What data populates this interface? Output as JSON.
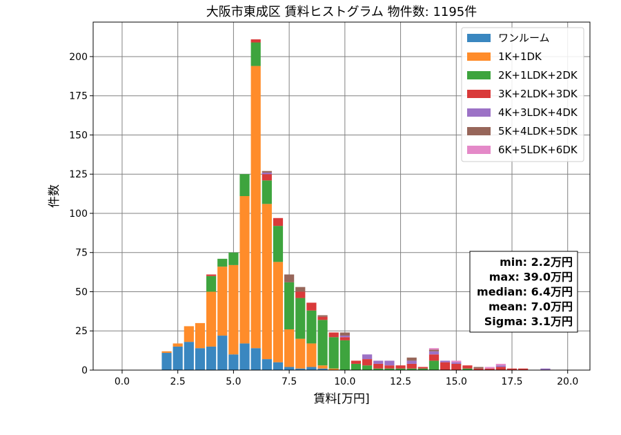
{
  "chart_data": {
    "type": "bar",
    "title": "大阪市東成区 賃料ヒストグラム  物件数: 1195件",
    "xlabel": "賃料[万円]",
    "ylabel": "件数",
    "xlim": [
      -1.3,
      21.0
    ],
    "ylim": [
      0,
      222
    ],
    "xticks": [
      0,
      2.5,
      5,
      7.5,
      10,
      12.5,
      15,
      17.5,
      20
    ],
    "xtick_labels": [
      "0.0",
      "2.5",
      "5.0",
      "7.5",
      "10.0",
      "12.5",
      "15.0",
      "17.5",
      "20.0"
    ],
    "yticks": [
      0,
      25,
      50,
      75,
      100,
      125,
      150,
      175,
      200
    ],
    "ytick_labels": [
      "0",
      "25",
      "50",
      "75",
      "100",
      "125",
      "150",
      "175",
      "200"
    ],
    "grid": true,
    "stacked": true,
    "legend_position": "top-right",
    "bin_width": 0.5,
    "bins": [
      2,
      2.5,
      3,
      3.5,
      4,
      4.5,
      5,
      5.5,
      6,
      6.5,
      7,
      7.5,
      8,
      8.5,
      9,
      9.5,
      10,
      10.5,
      11,
      11.5,
      12,
      12.5,
      13,
      13.5,
      14,
      14.5,
      15,
      15.5,
      16,
      16.5,
      17,
      17.5,
      18,
      18.5,
      19
    ],
    "series": [
      {
        "name": "ワンルーム",
        "color": "#3a87c0",
        "values": [
          11,
          15,
          18,
          14,
          15,
          22,
          10,
          17,
          14,
          7,
          5,
          2,
          1,
          2,
          1,
          0,
          0,
          0,
          0,
          0,
          0,
          0,
          0,
          0,
          0,
          0,
          0,
          0,
          0,
          0,
          0,
          0,
          0,
          0,
          0
        ]
      },
      {
        "name": "1K+1DK",
        "color": "#ff8c2a",
        "values": [
          1,
          2,
          10,
          16,
          35,
          44,
          57,
          94,
          180,
          99,
          64,
          24,
          19,
          15,
          2,
          1,
          0,
          0,
          0,
          0,
          0,
          0,
          0,
          0,
          0,
          0,
          0,
          0,
          0,
          0,
          0,
          0,
          0,
          0,
          0
        ]
      },
      {
        "name": "2K+1LDK+2DK",
        "color": "#3ea43e",
        "values": [
          0,
          0,
          0,
          0,
          10,
          5,
          8,
          14,
          15,
          15,
          23,
          30,
          26,
          21,
          29,
          20,
          19,
          4,
          3,
          1,
          1,
          1,
          1,
          1,
          6,
          0,
          0,
          1,
          0,
          0,
          0,
          0,
          0,
          0,
          0
        ]
      },
      {
        "name": "3K+2LDK+3DK",
        "color": "#d93a3a",
        "values": [
          0,
          0,
          0,
          0,
          1,
          0,
          0,
          0,
          2,
          4,
          5,
          0,
          4,
          5,
          2,
          3,
          2,
          2,
          4,
          3,
          2,
          2,
          3,
          1,
          4,
          5,
          4,
          2,
          1,
          1,
          2,
          1,
          1,
          0,
          0
        ]
      },
      {
        "name": "4K+3LDK+4DK",
        "color": "#9c72c6",
        "values": [
          0,
          0,
          0,
          0,
          0,
          0,
          0,
          0,
          0,
          1,
          0,
          0,
          0,
          0,
          0,
          0,
          1,
          0,
          3,
          2,
          3,
          0,
          2,
          0,
          2,
          1,
          1,
          0,
          0,
          0,
          1,
          0,
          0,
          0,
          1
        ]
      },
      {
        "name": "5K+4LDK+5DK",
        "color": "#97665a",
        "values": [
          0,
          0,
          0,
          0,
          0,
          0,
          0,
          0,
          0,
          1,
          0,
          5,
          3,
          0,
          1,
          0,
          2,
          0,
          0,
          0,
          0,
          0,
          2,
          0,
          1,
          0,
          0,
          0,
          1,
          0,
          0,
          0,
          0,
          0,
          0
        ]
      },
      {
        "name": "6K+5LDK+6DK",
        "color": "#e489c8",
        "values": [
          0,
          0,
          0,
          0,
          0,
          0,
          0,
          0,
          0,
          0,
          0,
          0,
          0,
          0,
          0,
          0,
          0,
          0,
          0,
          0,
          0,
          0,
          0,
          0,
          1,
          0,
          1,
          0,
          0,
          1,
          1,
          0,
          0,
          0,
          0
        ]
      }
    ],
    "stats": [
      "min: 2.2万円",
      "max: 39.0万円",
      "median: 6.4万円",
      "mean: 7.0万円",
      "Sigma: 3.1万円"
    ]
  }
}
